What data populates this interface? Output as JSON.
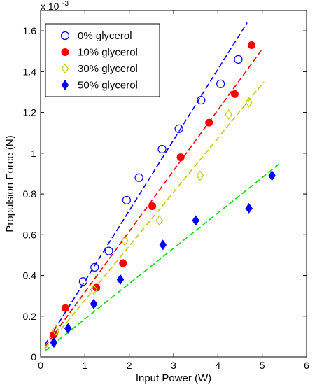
{
  "chart_data": {
    "type": "scatter",
    "xlabel": "Input Power (W)",
    "ylabel": "Propulsion Force (N)",
    "y_exponent_label": "x 10",
    "y_exponent": "-3",
    "xlim": [
      0,
      6
    ],
    "ylim": [
      0,
      1.7
    ],
    "xticks": [
      0,
      1,
      2,
      3,
      4,
      5,
      6
    ],
    "yticks": [
      0,
      0.2,
      0.4,
      0.6,
      0.8,
      1,
      1.2,
      1.4,
      1.6
    ],
    "ytick_labels": [
      "0",
      "0.2",
      "0.4",
      "0.6",
      "0.8",
      "1",
      "1.2",
      "1.4",
      "1.6"
    ],
    "grid": false,
    "legend_position": "top-left",
    "series": [
      {
        "name": "0% glycerol",
        "marker": "circle-open",
        "color": "#0000ff",
        "x": [
          0.96,
          1.22,
          1.54,
          1.94,
          2.22,
          2.74,
          3.12,
          3.62,
          4.06,
          4.46
        ],
        "y": [
          0.37,
          0.44,
          0.52,
          0.77,
          0.88,
          1.02,
          1.12,
          1.26,
          1.34,
          1.46
        ],
        "fit": {
          "x": [
            0.1,
            4.66
          ],
          "y": [
            0.06,
            1.64
          ],
          "color": "#0000ff"
        }
      },
      {
        "name": "10% glycerol",
        "marker": "circle-filled",
        "color": "#ff0000",
        "x": [
          0.3,
          0.56,
          1.26,
          1.86,
          2.52,
          3.16,
          3.8,
          4.38,
          4.76
        ],
        "y": [
          0.11,
          0.24,
          0.34,
          0.46,
          0.74,
          0.98,
          1.15,
          1.29,
          1.53
        ],
        "fit": {
          "x": [
            0.1,
            5.0
          ],
          "y": [
            0.05,
            1.51
          ],
          "color": "#ff0000"
        }
      },
      {
        "name": "30% glycerol",
        "marker": "diamond-open",
        "color": "#c8c800",
        "x": [
          0.34,
          1.2,
          1.9,
          2.68,
          3.6,
          4.24,
          4.7
        ],
        "y": [
          0.13,
          0.33,
          0.57,
          0.67,
          0.89,
          1.19,
          1.25
        ],
        "fit": {
          "x": [
            0.1,
            5.04
          ],
          "y": [
            0.04,
            1.35
          ],
          "color": "#c8c800"
        }
      },
      {
        "name": "50% glycerol",
        "marker": "diamond-filled",
        "color": "#0000ff",
        "x": [
          0.3,
          0.62,
          1.2,
          1.8,
          2.76,
          3.5,
          4.7,
          5.22
        ],
        "y": [
          0.07,
          0.14,
          0.26,
          0.38,
          0.55,
          0.67,
          0.73,
          0.89
        ],
        "fit": {
          "x": [
            0.1,
            5.4
          ],
          "y": [
            0.03,
            0.95
          ],
          "color": "#00dd00"
        }
      }
    ]
  }
}
